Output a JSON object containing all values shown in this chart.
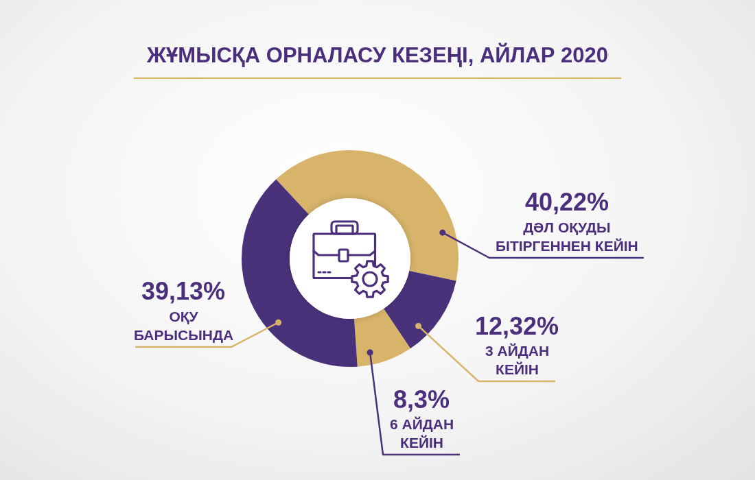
{
  "chart_data": {
    "type": "donut",
    "title": "ЖҰМЫСҚА ОРНАЛАСУ КЕЗЕҢІ, АЙЛАР 2020",
    "categories": [
      "ДӘЛ ОҚУДЫ БІТІРГЕННЕН КЕЙІН",
      "3 АЙДАН КЕЙІН",
      "6 АЙДАН КЕЙІН",
      "ОҚУ БАРЫСЫНДА"
    ],
    "values": [
      40.22,
      12.32,
      8.3,
      39.13
    ],
    "colors": [
      "#d7b46a",
      "#4a327b",
      "#d7b46a",
      "#4a327b"
    ],
    "value_labels": [
      "40,22%",
      "12,32%",
      "8,3%",
      "39,13%"
    ]
  }
}
